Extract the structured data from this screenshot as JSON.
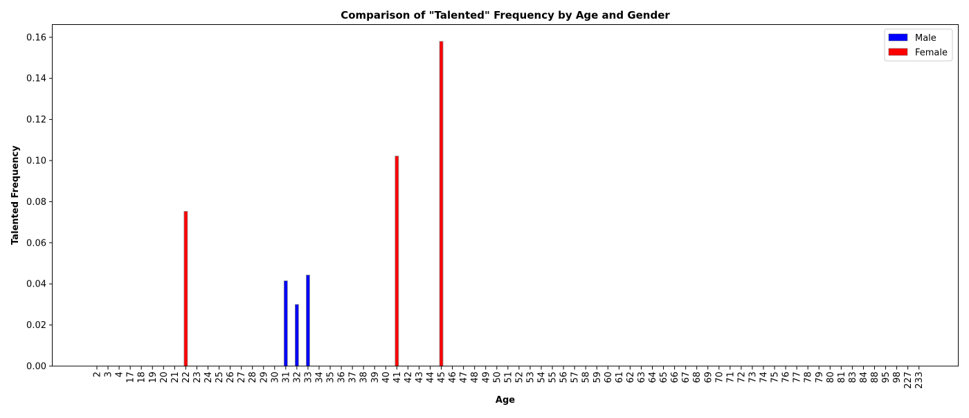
{
  "chart_data": {
    "type": "bar",
    "title": "Comparison of \"Talented\" Frequency by Age and Gender",
    "xlabel": "Age",
    "ylabel": "Talented Frequency",
    "ylim": [
      0,
      0.166
    ],
    "yticks": [
      "0.00",
      "0.02",
      "0.04",
      "0.06",
      "0.08",
      "0.10",
      "0.12",
      "0.14",
      "0.16"
    ],
    "ytick_values": [
      0,
      0.02,
      0.04,
      0.06,
      0.08,
      0.1,
      0.12,
      0.14,
      0.16
    ],
    "grid": false,
    "legend_position": "top-right",
    "categories": [
      "2",
      "3",
      "4",
      "17",
      "18",
      "19",
      "20",
      "21",
      "22",
      "23",
      "24",
      "25",
      "26",
      "27",
      "28",
      "29",
      "30",
      "31",
      "32",
      "33",
      "34",
      "35",
      "36",
      "37",
      "38",
      "39",
      "40",
      "41",
      "42",
      "43",
      "44",
      "45",
      "46",
      "47",
      "48",
      "49",
      "50",
      "51",
      "52",
      "53",
      "54",
      "55",
      "56",
      "57",
      "58",
      "59",
      "60",
      "61",
      "62",
      "63",
      "64",
      "65",
      "66",
      "67",
      "68",
      "69",
      "70",
      "71",
      "72",
      "73",
      "74",
      "75",
      "76",
      "77",
      "78",
      "79",
      "80",
      "81",
      "83",
      "84",
      "88",
      "95",
      "98",
      "227",
      "233"
    ],
    "series": [
      {
        "name": "Male",
        "color": "#0000ff",
        "points": [
          {
            "category": "31",
            "value": 0.0415
          },
          {
            "category": "32",
            "value": 0.03
          },
          {
            "category": "33",
            "value": 0.0443
          }
        ]
      },
      {
        "name": "Female",
        "color": "#ff0000",
        "points": [
          {
            "category": "22",
            "value": 0.0753
          },
          {
            "category": "41",
            "value": 0.1022
          },
          {
            "category": "45",
            "value": 0.158
          }
        ]
      }
    ]
  }
}
